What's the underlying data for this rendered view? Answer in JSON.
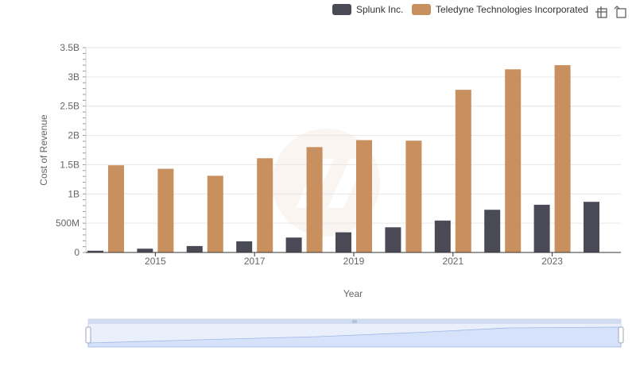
{
  "chart_data": {
    "type": "bar",
    "x": [
      2014,
      2015,
      2016,
      2017,
      2018,
      2019,
      2020,
      2021,
      2022,
      2023,
      2024
    ],
    "x_tick_labels": [
      "2015",
      "2017",
      "2019",
      "2021",
      "2023"
    ],
    "x_tick_values": [
      2015,
      2017,
      2019,
      2021,
      2023
    ],
    "series": [
      {
        "name": "Splunk Inc.",
        "color": "#4a4a57",
        "values": [
          30000000,
          65000000,
          110000000,
          190000000,
          255000000,
          345000000,
          430000000,
          545000000,
          730000000,
          815000000,
          865000000
        ]
      },
      {
        "name": "Teledyne Technologies Incorporated",
        "color": "#c8905e",
        "values": [
          1490000000,
          1430000000,
          1310000000,
          1610000000,
          1800000000,
          1920000000,
          1910000000,
          2780000000,
          3130000000,
          3200000000,
          null
        ]
      }
    ],
    "xlabel": "Year",
    "ylabel": "Cost of Revenue",
    "ylim": [
      0,
      3500000000
    ],
    "y_ticks": [
      {
        "value": 0,
        "label": "0"
      },
      {
        "value": 500000000,
        "label": "500M"
      },
      {
        "value": 1000000000,
        "label": "1B"
      },
      {
        "value": 1500000000,
        "label": "1.5B"
      },
      {
        "value": 2000000000,
        "label": "2B"
      },
      {
        "value": 2500000000,
        "label": "2.5B"
      },
      {
        "value": 3000000000,
        "label": "3B"
      },
      {
        "value": 3500000000,
        "label": "3.5B"
      }
    ],
    "grid": true,
    "legend_position": "top-right"
  },
  "toolbar": {
    "icons": [
      "crosshair-icon",
      "reset-zoom-icon"
    ]
  },
  "colors": {
    "grid": "#e6e6e6",
    "axis": "#333333",
    "zoom_fill": "#dbe6fb",
    "zoom_border": "#c8d3e8"
  }
}
